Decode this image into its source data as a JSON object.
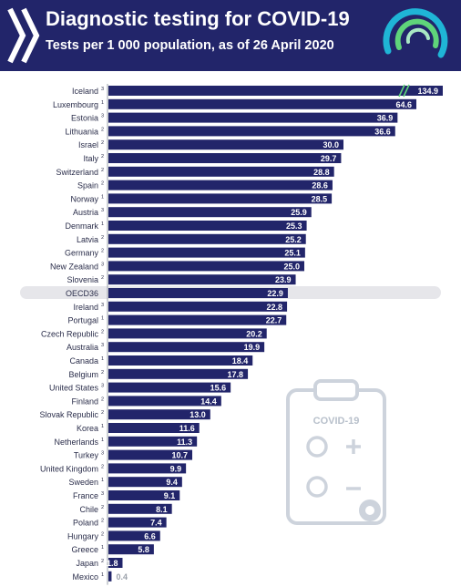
{
  "header": {
    "title": "Diagnostic testing for COVID-19",
    "subtitle": "Tests per 1 000 population, as of 26 April 2020"
  },
  "illustration": {
    "label": "COVID-19"
  },
  "colors": {
    "header_bg": "#22256a",
    "bar": "#22256a",
    "highlight_band": "#e6e6ea",
    "accent_green": "#5fd47a",
    "accent_cyan": "#1fb5d6"
  },
  "chart_data": {
    "type": "bar",
    "orientation": "horizontal",
    "title": "Diagnostic testing for COVID-19",
    "subtitle": "Tests per 1 000 population, as of 26 April 2020",
    "categories": [
      "Iceland",
      "Luxembourg",
      "Estonia",
      "Lithuania",
      "Israel",
      "Italy",
      "Switzerland",
      "Spain",
      "Norway",
      "Austria",
      "Denmark",
      "Latvia",
      "Germany",
      "New Zealand",
      "Slovenia",
      "OECD36",
      "Ireland",
      "Portugal",
      "Czech Republic",
      "Australia",
      "Canada",
      "Belgium",
      "United States",
      "Finland",
      "Slovak Republic",
      "Korea",
      "Netherlands",
      "Turkey",
      "United Kingdom",
      "Sweden",
      "France",
      "Chile",
      "Poland",
      "Hungary",
      "Greece",
      "Japan",
      "Mexico"
    ],
    "footnotes": [
      "3",
      "1",
      "3",
      "2",
      "2",
      "2",
      "2",
      "2",
      "1",
      "3",
      "1",
      "2",
      "2",
      "3",
      "2",
      "",
      "3",
      "1",
      "2",
      "3",
      "1",
      "2",
      "3",
      "2",
      "2",
      "1",
      "1",
      "3",
      "2",
      "1",
      "3",
      "2",
      "2",
      "2",
      "1",
      "2",
      "1"
    ],
    "values": [
      134.9,
      64.6,
      36.9,
      36.6,
      30.0,
      29.7,
      28.8,
      28.6,
      28.5,
      25.9,
      25.3,
      25.2,
      25.1,
      25.0,
      23.9,
      22.9,
      22.8,
      22.7,
      20.2,
      19.9,
      18.4,
      17.8,
      15.6,
      14.4,
      13.0,
      11.6,
      11.3,
      10.7,
      9.9,
      9.4,
      9.1,
      8.1,
      7.4,
      6.6,
      5.8,
      1.8,
      0.4
    ],
    "value_labels": [
      "134.9",
      "64.6",
      "36.9",
      "36.6",
      "30.0",
      "29.7",
      "28.8",
      "28.6",
      "28.5",
      "25.9",
      "25.3",
      "25.2",
      "25.1",
      "25.0",
      "23.9",
      "22.9",
      "22.8",
      "22.7",
      "20.2",
      "19.9",
      "18.4",
      "17.8",
      "15.6",
      "14.4",
      "13.0",
      "11.6",
      "11.3",
      "10.7",
      "9.9",
      "9.4",
      "9.1",
      "8.1",
      "7.4",
      "6.6",
      "5.8",
      "1.8",
      "0.4"
    ],
    "axis_break_on": "Iceland",
    "highlight": "OECD36",
    "grid": false,
    "legend": "none"
  }
}
